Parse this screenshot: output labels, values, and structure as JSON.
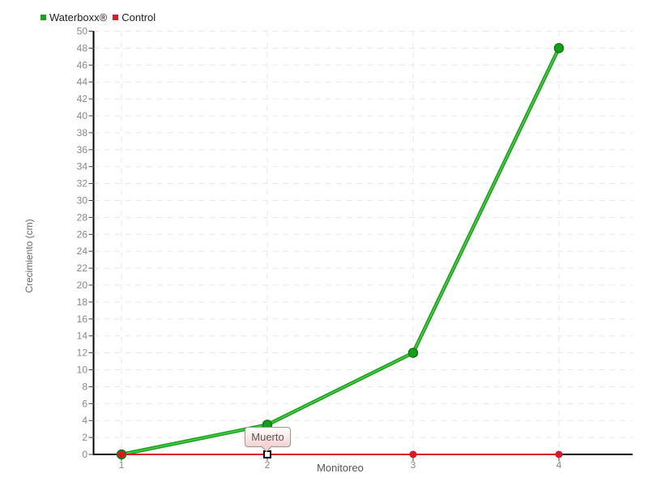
{
  "page": {
    "background": "#ffffff"
  },
  "legend": {
    "items": [
      {
        "label": "Waterboxx®",
        "color": "#1ea11e"
      },
      {
        "label": "Control",
        "color": "#e0182a"
      }
    ]
  },
  "tooltip": {
    "text": "Muerto"
  },
  "chart_data": {
    "type": "line",
    "title": "",
    "xlabel": "Monitoreo",
    "ylabel": "Crecimiento (cm)",
    "x": [
      1,
      2,
      3,
      4
    ],
    "x_tick_labels": [
      "1",
      "2",
      "3",
      "4"
    ],
    "y_tick_labels": [
      "0",
      "2",
      "4",
      "6",
      "8",
      "10",
      "12",
      "14",
      "16",
      "18",
      "20",
      "22",
      "24",
      "26",
      "28",
      "30",
      "32",
      "34",
      "36",
      "38",
      "40",
      "42",
      "44",
      "46",
      "48",
      "50"
    ],
    "xlim": [
      1,
      4
    ],
    "ylim": [
      0,
      50
    ],
    "grid": true,
    "gridline_color": "#e8e8e8",
    "axis_color": "#000000",
    "tick_color": "#444444",
    "tick_label_color": "#888888",
    "legend_position": "top-left",
    "series": [
      {
        "name": "Waterboxx®",
        "color": "#17a017",
        "sheen_color": "#4ecb4e",
        "marker_stroke": "#0d7c0d",
        "marker": "circle",
        "values": [
          0,
          3.5,
          12,
          48
        ]
      },
      {
        "name": "Control",
        "color": "#db1626",
        "marker": "circle",
        "values": [
          0,
          0,
          0,
          0
        ]
      }
    ],
    "annotation": {
      "text": "Muerto",
      "series": "Control",
      "x": 2,
      "y": 0,
      "highlighted_marker": "square"
    }
  }
}
